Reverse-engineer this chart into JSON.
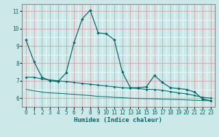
{
  "xlabel": "Humidex (Indice chaleur)",
  "bg_color": "#cde8e8",
  "grid_major_color": "#d4a0a0",
  "grid_minor_color": "#ffffff",
  "line_color": "#006666",
  "xlim": [
    -0.5,
    23.5
  ],
  "ylim": [
    5.5,
    11.4
  ],
  "xticks": [
    0,
    1,
    2,
    3,
    4,
    5,
    6,
    7,
    8,
    9,
    10,
    11,
    12,
    13,
    14,
    15,
    16,
    17,
    18,
    19,
    20,
    21,
    22,
    23
  ],
  "yticks": [
    6,
    7,
    8,
    9,
    10,
    11
  ],
  "line1_x": [
    0,
    1,
    2,
    3,
    4,
    5,
    6,
    7,
    8,
    9,
    10,
    11,
    12,
    13,
    14,
    15,
    16,
    17,
    18,
    19,
    20,
    21,
    22,
    23
  ],
  "line1_y": [
    9.35,
    8.1,
    7.2,
    7.0,
    6.95,
    7.45,
    9.2,
    10.55,
    11.05,
    9.75,
    9.7,
    9.35,
    7.5,
    6.6,
    6.6,
    6.65,
    7.3,
    6.9,
    6.6,
    6.55,
    6.5,
    6.35,
    5.95,
    5.85
  ],
  "line2_x": [
    0,
    1,
    2,
    3,
    4,
    5,
    6,
    7,
    8,
    9,
    10,
    11,
    12,
    13,
    14,
    15,
    16,
    17,
    18,
    19,
    20,
    21,
    22,
    23
  ],
  "line2_y": [
    7.2,
    7.2,
    7.1,
    7.05,
    7.0,
    6.95,
    6.9,
    6.85,
    6.8,
    6.75,
    6.7,
    6.65,
    6.6,
    6.58,
    6.55,
    6.5,
    6.5,
    6.45,
    6.38,
    6.3,
    6.25,
    6.15,
    6.05,
    6.0
  ],
  "line3_x": [
    0,
    2,
    3,
    4,
    5,
    6,
    7,
    8,
    9,
    10,
    11,
    12,
    13,
    14,
    15,
    16,
    17,
    18,
    19,
    20,
    21,
    22,
    23
  ],
  "line3_y": [
    6.5,
    6.35,
    6.3,
    6.28,
    6.25,
    6.22,
    6.18,
    6.15,
    6.1,
    6.08,
    6.05,
    6.03,
    6.0,
    5.98,
    5.97,
    5.96,
    5.94,
    5.93,
    5.92,
    5.9,
    5.88,
    5.87,
    5.85
  ]
}
